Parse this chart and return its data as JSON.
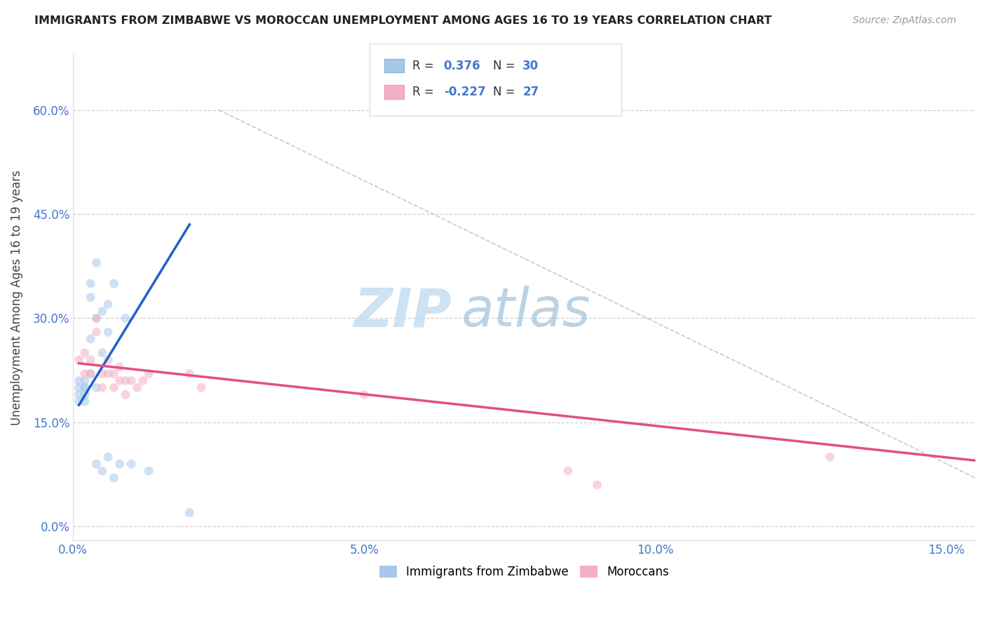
{
  "title": "IMMIGRANTS FROM ZIMBABWE VS MOROCCAN UNEMPLOYMENT AMONG AGES 16 TO 19 YEARS CORRELATION CHART",
  "source": "Source: ZipAtlas.com",
  "ylabel": "Unemployment Among Ages 16 to 19 years",
  "xlim": [
    0.0,
    0.155
  ],
  "ylim": [
    -0.02,
    0.68
  ],
  "blue_color": "#a8c8ea",
  "pink_color": "#f4b0c4",
  "blue_line_color": "#2060cc",
  "pink_line_color": "#e05080",
  "ref_line_color": "#bbbbbb",
  "grid_color": "#cccccc",
  "background_color": "#ffffff",
  "scatter_size": 85,
  "scatter_alpha": 0.55,
  "zimbabwe_x": [
    0.001,
    0.001,
    0.001,
    0.001,
    0.002,
    0.002,
    0.002,
    0.002,
    0.002,
    0.003,
    0.003,
    0.003,
    0.003,
    0.004,
    0.004,
    0.004,
    0.004,
    0.005,
    0.005,
    0.005,
    0.006,
    0.006,
    0.006,
    0.007,
    0.007,
    0.008,
    0.009,
    0.01,
    0.013,
    0.02
  ],
  "zimbabwe_y": [
    0.19,
    0.2,
    0.21,
    0.18,
    0.19,
    0.2,
    0.2,
    0.21,
    0.18,
    0.27,
    0.33,
    0.35,
    0.22,
    0.3,
    0.38,
    0.2,
    0.09,
    0.31,
    0.25,
    0.08,
    0.32,
    0.28,
    0.1,
    0.35,
    0.07,
    0.09,
    0.3,
    0.09,
    0.08,
    0.02
  ],
  "moroccan_x": [
    0.001,
    0.002,
    0.002,
    0.003,
    0.003,
    0.004,
    0.004,
    0.005,
    0.005,
    0.006,
    0.006,
    0.007,
    0.007,
    0.008,
    0.008,
    0.009,
    0.009,
    0.01,
    0.011,
    0.012,
    0.013,
    0.02,
    0.022,
    0.05,
    0.085,
    0.09,
    0.13
  ],
  "moroccan_y": [
    0.24,
    0.25,
    0.22,
    0.24,
    0.22,
    0.3,
    0.28,
    0.22,
    0.2,
    0.24,
    0.22,
    0.22,
    0.2,
    0.23,
    0.21,
    0.21,
    0.19,
    0.21,
    0.2,
    0.21,
    0.22,
    0.22,
    0.2,
    0.19,
    0.08,
    0.06,
    0.1
  ],
  "blue_line_x": [
    0.001,
    0.02
  ],
  "blue_line_y": [
    0.175,
    0.435
  ],
  "pink_line_x": [
    0.001,
    0.155
  ],
  "pink_line_y": [
    0.235,
    0.095
  ],
  "ref_line_x": [
    0.025,
    0.155
  ],
  "ref_line_y": [
    0.6,
    0.07
  ],
  "xtick_vals": [
    0.0,
    0.05,
    0.1,
    0.15
  ],
  "xtick_labels": [
    "0.0%",
    "5.0%",
    "10.0%",
    "15.0%"
  ],
  "ytick_vals": [
    0.0,
    0.15,
    0.3,
    0.45,
    0.6
  ],
  "ytick_labels": [
    "0.0%",
    "15.0%",
    "30.0%",
    "45.0%",
    "60.0%"
  ],
  "watermark_zip": "ZIP",
  "watermark_atlas": "atlas",
  "watermark_color": "#d4e6f4"
}
